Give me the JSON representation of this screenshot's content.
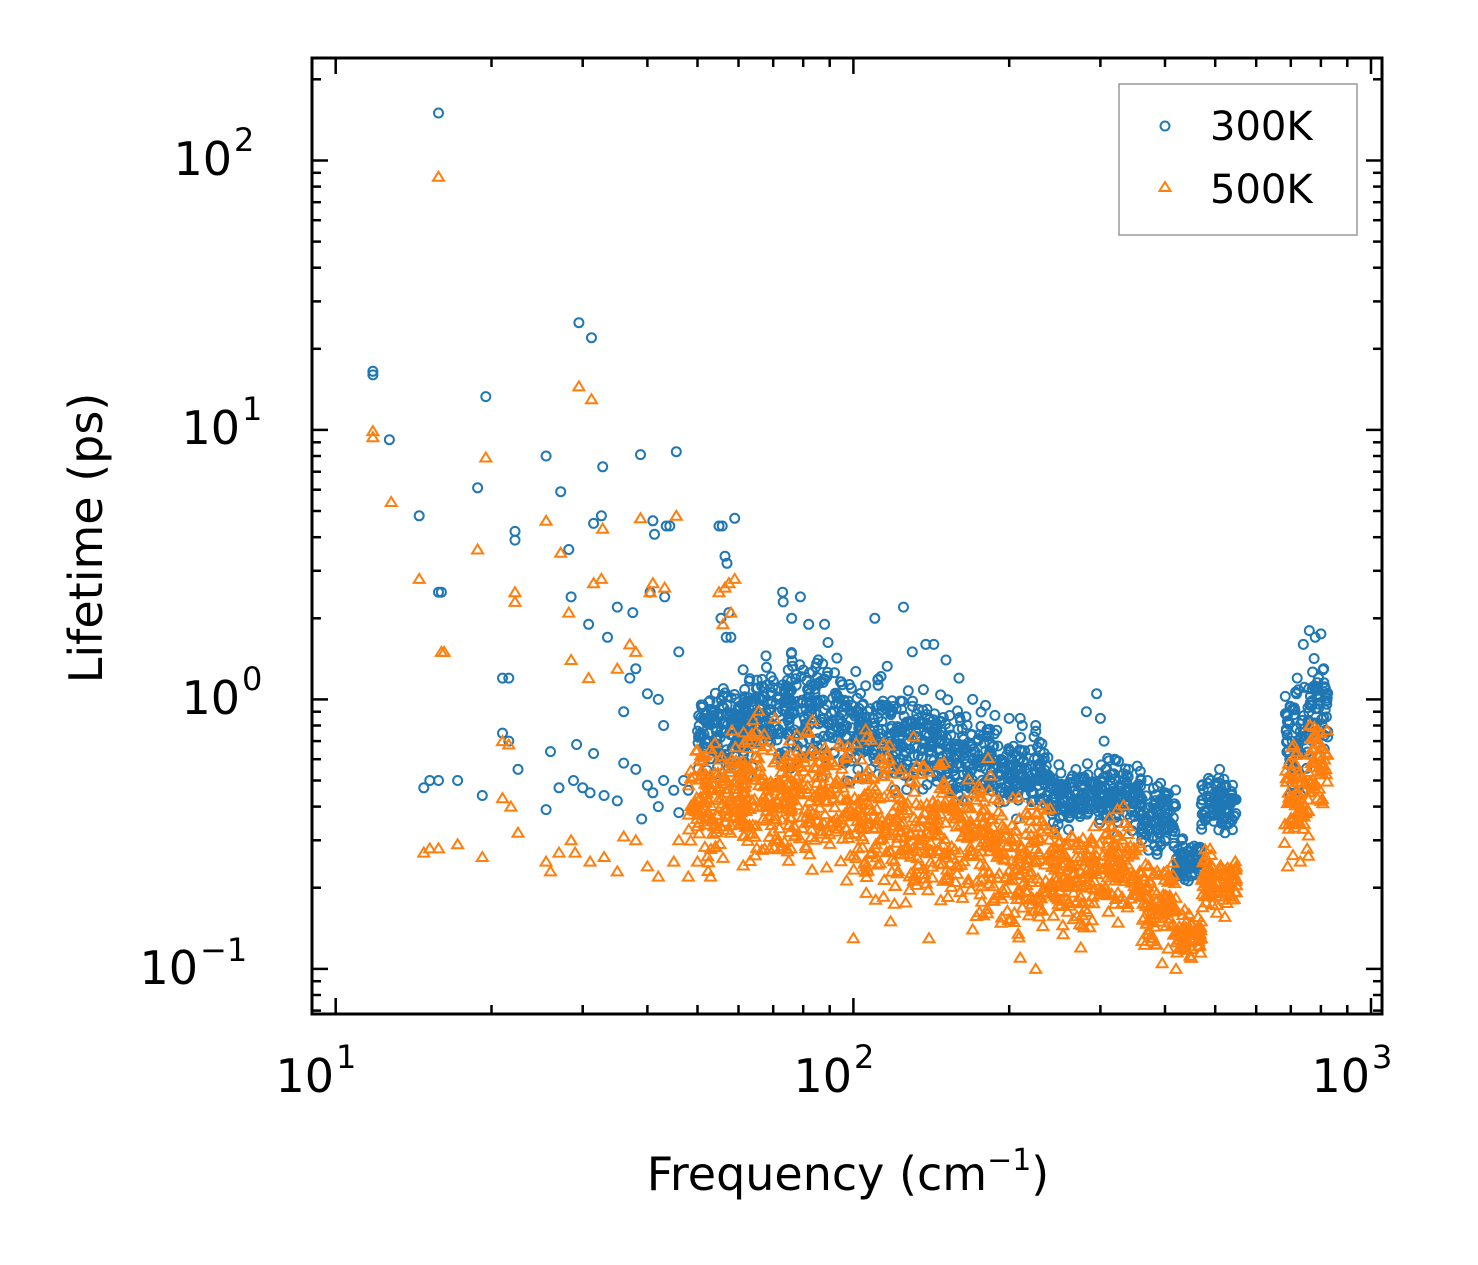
{
  "chart_data": {
    "type": "scatter",
    "xscale": "log",
    "yscale": "log",
    "xlabel": {
      "base": "Frequency (cm",
      "sup": "−1",
      "tail": ")"
    },
    "ylabel": "Lifetime (ps)",
    "xlim": [
      9,
      1050
    ],
    "ylim": [
      0.068,
      240
    ],
    "xticks": [
      {
        "value": 10,
        "base": "10",
        "exp": "1"
      },
      {
        "value": 100,
        "base": "10",
        "exp": "2"
      },
      {
        "value": 1000,
        "base": "10",
        "exp": "3"
      }
    ],
    "yticks": [
      {
        "value": 0.1,
        "base": "10",
        "exp": "−1"
      },
      {
        "value": 1,
        "base": "10",
        "exp": "0"
      },
      {
        "value": 10,
        "base": "10",
        "exp": "1"
      },
      {
        "value": 100,
        "base": "10",
        "exp": "2"
      }
    ],
    "legend_position": "top-right",
    "series": [
      {
        "name": "300K",
        "marker": "circle",
        "color": "#1f77b4",
        "points": [
          [
            15.8,
            150
          ],
          [
            29.5,
            25
          ],
          [
            31.2,
            22
          ],
          [
            11.8,
            16.5
          ],
          [
            11.8,
            16
          ],
          [
            12.7,
            9.2
          ],
          [
            19.5,
            13.3
          ],
          [
            14.5,
            4.8
          ],
          [
            18.8,
            6.1
          ],
          [
            22.2,
            4.2
          ],
          [
            22.2,
            3.9
          ],
          [
            25.5,
            8.0
          ],
          [
            27.2,
            5.9
          ],
          [
            28.2,
            3.6
          ],
          [
            31.5,
            4.5
          ],
          [
            32.8,
            7.3
          ],
          [
            32.6,
            4.8
          ],
          [
            35,
            2.2
          ],
          [
            15.8,
            2.5
          ],
          [
            16,
            2.5
          ],
          [
            21,
            1.2
          ],
          [
            21.6,
            1.2
          ],
          [
            28.5,
            2.4
          ],
          [
            30.8,
            1.9
          ],
          [
            33.5,
            1.7
          ],
          [
            37.5,
            2.1
          ],
          [
            38.8,
            8.1
          ],
          [
            41,
            4.6
          ],
          [
            41.3,
            4.1
          ],
          [
            43.5,
            4.4
          ],
          [
            44.2,
            4.4
          ],
          [
            45.5,
            8.3
          ],
          [
            40.5,
            2.5
          ],
          [
            43.2,
            2.4
          ],
          [
            46,
            1.5
          ],
          [
            38,
            1.3
          ],
          [
            37,
            1.2
          ],
          [
            40,
            1.05
          ],
          [
            42,
            1.0
          ],
          [
            43,
            0.8
          ],
          [
            36,
            0.9
          ],
          [
            55,
            4.4
          ],
          [
            55.8,
            4.4
          ],
          [
            56.5,
            3.4
          ],
          [
            57,
            3.2
          ],
          [
            55.5,
            2.0
          ],
          [
            57.5,
            2.1
          ],
          [
            56.8,
            1.7
          ],
          [
            58,
            1.7
          ],
          [
            59,
            4.7
          ],
          [
            21,
            0.75
          ],
          [
            21.6,
            0.7
          ],
          [
            22.5,
            0.55
          ],
          [
            26,
            0.64
          ],
          [
            29.2,
            0.68
          ],
          [
            31.5,
            0.63
          ],
          [
            15.2,
            0.5
          ],
          [
            15.8,
            0.5
          ],
          [
            14.8,
            0.47
          ],
          [
            17.2,
            0.5
          ],
          [
            19.2,
            0.44
          ],
          [
            25.5,
            0.39
          ],
          [
            27,
            0.47
          ],
          [
            28.8,
            0.5
          ],
          [
            30,
            0.47
          ],
          [
            31,
            0.45
          ],
          [
            33,
            0.44
          ],
          [
            35,
            0.42
          ],
          [
            36,
            0.58
          ],
          [
            38,
            0.55
          ],
          [
            40,
            0.48
          ],
          [
            41,
            0.45
          ],
          [
            43,
            0.5
          ],
          [
            45,
            0.46
          ],
          [
            47,
            0.5
          ],
          [
            48,
            0.46
          ],
          [
            39,
            0.36
          ],
          [
            42,
            0.4
          ],
          [
            46,
            0.38
          ],
          [
            73,
            2.5
          ],
          [
            73.2,
            2.3
          ],
          [
            79,
            2.4
          ],
          [
            76,
            2.0
          ],
          [
            82,
            1.9
          ],
          [
            88,
            1.9
          ],
          [
            110,
            2.0
          ],
          [
            125,
            2.2
          ],
          [
            138,
            1.6
          ],
          [
            143,
            1.6
          ],
          [
            130,
            1.5
          ],
          [
            151,
            1.4
          ],
          [
            160,
            1.2
          ],
          [
            170,
            1.0
          ],
          [
            180,
            0.95
          ],
          [
            200,
            0.85
          ],
          [
            210,
            0.85
          ],
          [
            212,
            0.8
          ],
          [
            225,
            0.8
          ],
          [
            265,
            0.52
          ],
          [
            295,
            1.05
          ],
          [
            282,
            0.9
          ],
          [
            300,
            0.85
          ],
          [
            305,
            0.7
          ],
          [
            320,
            0.6
          ],
          [
            340,
            0.55
          ],
          [
            370,
            0.5
          ],
          [
            400,
            0.45
          ],
          [
            430,
            0.3
          ],
          [
            460,
            0.28
          ],
          [
            490,
            0.5
          ],
          [
            510,
            0.55
          ],
          [
            540,
            0.48
          ],
          [
            690,
            0.7
          ],
          [
            720,
            1.2
          ],
          [
            740,
            1.6
          ],
          [
            760,
            1.8
          ],
          [
            780,
            1.7
          ],
          [
            800,
            1.75
          ],
          [
            810,
            1.3
          ],
          [
            816,
            1.1
          ]
        ],
        "bands": [
          [
            50,
            62,
            0.5,
            1.25
          ],
          [
            60,
            75,
            0.45,
            1.6
          ],
          [
            75,
            95,
            0.45,
            1.8
          ],
          [
            95,
            120,
            0.42,
            1.5
          ],
          [
            120,
            150,
            0.4,
            1.2
          ],
          [
            150,
            190,
            0.38,
            1.05
          ],
          [
            190,
            240,
            0.33,
            0.85
          ],
          [
            240,
            300,
            0.3,
            0.6
          ],
          [
            300,
            360,
            0.3,
            0.65
          ],
          [
            360,
            420,
            0.24,
            0.55
          ],
          [
            420,
            470,
            0.19,
            0.32
          ],
          [
            470,
            550,
            0.3,
            0.55
          ],
          [
            680,
            760,
            0.35,
            1.5
          ],
          [
            760,
            825,
            0.5,
            1.75
          ]
        ]
      },
      {
        "name": "500K",
        "marker": "triangle",
        "color": "#ff7f0e",
        "points": [
          [
            15.8,
            87
          ],
          [
            29.5,
            14.5
          ],
          [
            31.2,
            13
          ],
          [
            11.8,
            9.9
          ],
          [
            11.8,
            9.4
          ],
          [
            12.8,
            5.4
          ],
          [
            19.5,
            7.9
          ],
          [
            14.5,
            2.8
          ],
          [
            18.8,
            3.6
          ],
          [
            22.2,
            2.5
          ],
          [
            22.2,
            2.3
          ],
          [
            25.5,
            4.6
          ],
          [
            27.2,
            3.5
          ],
          [
            28.2,
            2.1
          ],
          [
            31.5,
            2.7
          ],
          [
            32.8,
            4.3
          ],
          [
            32.6,
            2.8
          ],
          [
            35,
            1.3
          ],
          [
            16,
            1.5
          ],
          [
            16.2,
            1.5
          ],
          [
            21,
            0.7
          ],
          [
            21.6,
            0.68
          ],
          [
            28.5,
            1.4
          ],
          [
            30.8,
            1.2
          ],
          [
            38.8,
            4.7
          ],
          [
            41,
            2.7
          ],
          [
            43.2,
            2.6
          ],
          [
            45.5,
            4.8
          ],
          [
            40.5,
            2.5
          ],
          [
            38,
            1.5
          ],
          [
            37,
            1.6
          ],
          [
            55,
            2.5
          ],
          [
            56.5,
            2.6
          ],
          [
            57.5,
            2.7
          ],
          [
            58,
            2.1
          ],
          [
            59,
            2.8
          ],
          [
            56,
            1.9
          ],
          [
            21,
            0.43
          ],
          [
            21.8,
            0.4
          ],
          [
            22.5,
            0.32
          ],
          [
            26,
            0.23
          ],
          [
            28.5,
            0.3
          ],
          [
            15.2,
            0.28
          ],
          [
            15.8,
            0.28
          ],
          [
            14.8,
            0.27
          ],
          [
            17.2,
            0.29
          ],
          [
            19.2,
            0.26
          ],
          [
            25.5,
            0.25
          ],
          [
            27,
            0.27
          ],
          [
            29,
            0.27
          ],
          [
            31,
            0.25
          ],
          [
            33,
            0.26
          ],
          [
            35,
            0.23
          ],
          [
            36,
            0.31
          ],
          [
            38,
            0.3
          ],
          [
            40,
            0.24
          ],
          [
            42,
            0.22
          ],
          [
            45,
            0.25
          ],
          [
            48,
            0.22
          ],
          [
            50,
            0.25
          ],
          [
            53,
            0.22
          ],
          [
            46,
            0.3
          ],
          [
            100,
            0.13
          ],
          [
            118,
            0.15
          ],
          [
            140,
            0.13
          ],
          [
            170,
            0.14
          ],
          [
            210,
            0.11
          ],
          [
            225,
            0.1
          ],
          [
            275,
            0.12
          ],
          [
            395,
            0.105
          ],
          [
            420,
            0.1
          ],
          [
            450,
            0.11
          ],
          [
            470,
            0.13
          ],
          [
            520,
            0.2
          ],
          [
            690,
            0.24
          ],
          [
            730,
            0.25
          ]
        ],
        "bands": [
          [
            48,
            62,
            0.22,
            0.9
          ],
          [
            60,
            75,
            0.2,
            1.0
          ],
          [
            75,
            95,
            0.18,
            1.05
          ],
          [
            95,
            120,
            0.15,
            1.0
          ],
          [
            120,
            150,
            0.13,
            0.8
          ],
          [
            150,
            190,
            0.13,
            0.7
          ],
          [
            190,
            240,
            0.11,
            0.55
          ],
          [
            240,
            300,
            0.12,
            0.4
          ],
          [
            300,
            360,
            0.13,
            0.45
          ],
          [
            360,
            420,
            0.1,
            0.3
          ],
          [
            420,
            470,
            0.1,
            0.18
          ],
          [
            470,
            550,
            0.15,
            0.3
          ],
          [
            680,
            760,
            0.22,
            0.9
          ],
          [
            760,
            825,
            0.28,
            1.15
          ]
        ]
      }
    ]
  }
}
